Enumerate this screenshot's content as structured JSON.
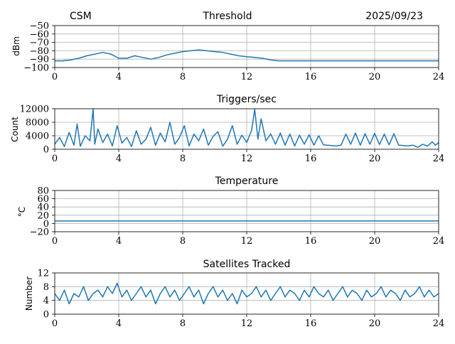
{
  "header": {
    "left": "CSM",
    "center": "Threshold",
    "right": "2025/09/23"
  },
  "colors": {
    "line": "#1f77b4",
    "grid": "#b0b0b0",
    "axis": "#000000"
  },
  "chart_data": [
    {
      "type": "line",
      "name": "threshold",
      "title": "",
      "ylabel": "dBm",
      "xlim": [
        0,
        24
      ],
      "ylim": [
        -100,
        -50
      ],
      "xticks": [
        0,
        4,
        8,
        12,
        16,
        20,
        24
      ],
      "yticks": [
        -100,
        -90,
        -80,
        -70,
        -60,
        -50
      ],
      "ytick_labels": [
        "−100",
        "−90",
        "−80",
        "−70",
        "−60",
        "−50"
      ],
      "grid": true,
      "series": [
        {
          "name": "Threshold",
          "x": [
            0,
            0.5,
            1,
            1.5,
            2,
            2.5,
            3,
            3.5,
            4,
            4.5,
            5,
            5.5,
            6,
            6.5,
            7,
            7.5,
            8,
            8.5,
            9,
            9.5,
            10,
            10.5,
            11,
            11.5,
            12,
            12.5,
            13,
            13.5,
            14,
            15,
            16,
            17,
            18,
            19,
            20,
            21,
            22,
            23,
            24
          ],
          "y": [
            -92,
            -92,
            -91,
            -89,
            -86,
            -84,
            -82,
            -84,
            -89,
            -89,
            -86,
            -88,
            -90,
            -88,
            -85,
            -83,
            -81,
            -80,
            -79,
            -80,
            -81,
            -82,
            -84,
            -86,
            -87,
            -88,
            -89,
            -91,
            -92,
            -92,
            -92,
            -92,
            -92,
            -92,
            -92,
            -92,
            -92,
            -92,
            -92
          ]
        }
      ]
    },
    {
      "type": "line",
      "name": "triggers",
      "title": "Triggers/sec",
      "ylabel": "Count",
      "xlim": [
        0,
        24
      ],
      "ylim": [
        0,
        12000
      ],
      "xticks": [
        0,
        4,
        8,
        12,
        16,
        20,
        24
      ],
      "yticks": [
        0,
        4000,
        8000,
        12000
      ],
      "ytick_labels": [
        "0",
        "4000",
        "8000",
        "12000"
      ],
      "grid": true,
      "series": [
        {
          "name": "Triggers/sec",
          "x": [
            0,
            0.3,
            0.6,
            0.9,
            1.2,
            1.4,
            1.6,
            1.9,
            2.2,
            2.4,
            2.5,
            2.7,
            3,
            3.3,
            3.6,
            3.9,
            4.2,
            4.5,
            4.8,
            5.1,
            5.4,
            5.7,
            6,
            6.3,
            6.6,
            6.9,
            7.2,
            7.5,
            7.8,
            8.1,
            8.4,
            8.7,
            9,
            9.3,
            9.6,
            9.9,
            10.2,
            10.5,
            10.8,
            11.1,
            11.4,
            11.7,
            12,
            12.3,
            12.5,
            12.7,
            12.9,
            13.2,
            13.5,
            13.8,
            14.1,
            14.4,
            14.7,
            15,
            15.3,
            15.6,
            15.9,
            16.2,
            16.5,
            16.8,
            17,
            17.3,
            17.6,
            17.9,
            18.2,
            18.5,
            18.8,
            19.1,
            19.4,
            19.7,
            20,
            20.3,
            20.6,
            20.9,
            21.2,
            21.5,
            21.8,
            22.1,
            22.4,
            22.7,
            23,
            23.3,
            23.6,
            23.8,
            24
          ],
          "y": [
            1500,
            3500,
            800,
            5000,
            1200,
            7500,
            900,
            4000,
            2500,
            12000,
            1500,
            6000,
            2000,
            4500,
            1000,
            7000,
            1800,
            3500,
            800,
            5500,
            1500,
            3000,
            6500,
            1200,
            4800,
            2200,
            8000,
            1500,
            3500,
            7000,
            1000,
            4500,
            2500,
            6000,
            1200,
            3800,
            5200,
            900,
            3000,
            7000,
            1500,
            4200,
            2000,
            5500,
            11800,
            3000,
            9000,
            2500,
            4500,
            1500,
            4800,
            1200,
            4500,
            1000,
            4200,
            1500,
            4300,
            1200,
            4000,
            1300,
            1200,
            1100,
            1000,
            1200,
            4500,
            1500,
            4800,
            1200,
            4600,
            1500,
            4700,
            1400,
            4500,
            1300,
            4600,
            1200,
            1100,
            1000,
            1200,
            600,
            1500,
            900,
            2200,
            1200,
            2000
          ]
        }
      ]
    },
    {
      "type": "line",
      "name": "temperature",
      "title": "Temperature",
      "ylabel": "°C",
      "xlim": [
        0,
        24
      ],
      "ylim": [
        -20,
        80
      ],
      "xticks": [
        0,
        4,
        8,
        12,
        16,
        20,
        24
      ],
      "yticks": [
        -20,
        0,
        20,
        40,
        60,
        80
      ],
      "ytick_labels": [
        "−20",
        "0",
        "20",
        "40",
        "60",
        "80"
      ],
      "grid": true,
      "series": [
        {
          "name": "Temperature",
          "x": [
            0,
            24
          ],
          "y": [
            6,
            6
          ]
        }
      ]
    },
    {
      "type": "line",
      "name": "satellites",
      "title": "Satellites Tracked",
      "ylabel": "Number",
      "xlim": [
        0,
        24
      ],
      "ylim": [
        0,
        12
      ],
      "xticks": [
        0,
        4,
        8,
        12,
        16,
        20,
        24
      ],
      "yticks": [
        0,
        4,
        8,
        12
      ],
      "ytick_labels": [
        "0",
        "4",
        "8",
        "12"
      ],
      "grid": true,
      "series": [
        {
          "name": "Satellites",
          "x": [
            0,
            0.3,
            0.6,
            0.9,
            1.2,
            1.5,
            1.8,
            2.1,
            2.4,
            2.7,
            3,
            3.3,
            3.6,
            3.9,
            4.2,
            4.5,
            4.8,
            5.1,
            5.4,
            5.7,
            6,
            6.3,
            6.6,
            6.9,
            7.2,
            7.5,
            7.8,
            8.1,
            8.4,
            8.7,
            9,
            9.3,
            9.6,
            9.9,
            10.2,
            10.5,
            10.8,
            11.1,
            11.4,
            11.7,
            12,
            12.3,
            12.6,
            12.9,
            13.2,
            13.5,
            13.8,
            14.1,
            14.4,
            14.7,
            15,
            15.3,
            15.6,
            15.9,
            16.2,
            16.5,
            16.8,
            17.1,
            17.4,
            17.7,
            18,
            18.3,
            18.6,
            18.9,
            19.2,
            19.5,
            19.8,
            20.1,
            20.4,
            20.7,
            21,
            21.3,
            21.6,
            21.9,
            22.2,
            22.5,
            22.8,
            23.1,
            23.4,
            23.7,
            24
          ],
          "y": [
            6,
            4,
            7,
            3,
            6,
            5,
            8,
            4,
            6,
            7,
            5,
            8,
            6,
            9,
            5,
            7,
            4,
            6,
            8,
            5,
            7,
            3,
            6,
            8,
            5,
            7,
            4,
            6,
            8,
            5,
            7,
            3,
            6,
            8,
            5,
            7,
            4,
            6,
            3,
            7,
            5,
            6,
            8,
            5,
            7,
            4,
            6,
            8,
            5,
            7,
            6,
            4,
            7,
            5,
            8,
            6,
            5,
            7,
            4,
            6,
            8,
            5,
            7,
            6,
            4,
            7,
            5,
            6,
            8,
            5,
            7,
            6,
            4,
            7,
            5,
            6,
            8,
            5,
            7,
            5,
            6
          ]
        }
      ]
    }
  ]
}
